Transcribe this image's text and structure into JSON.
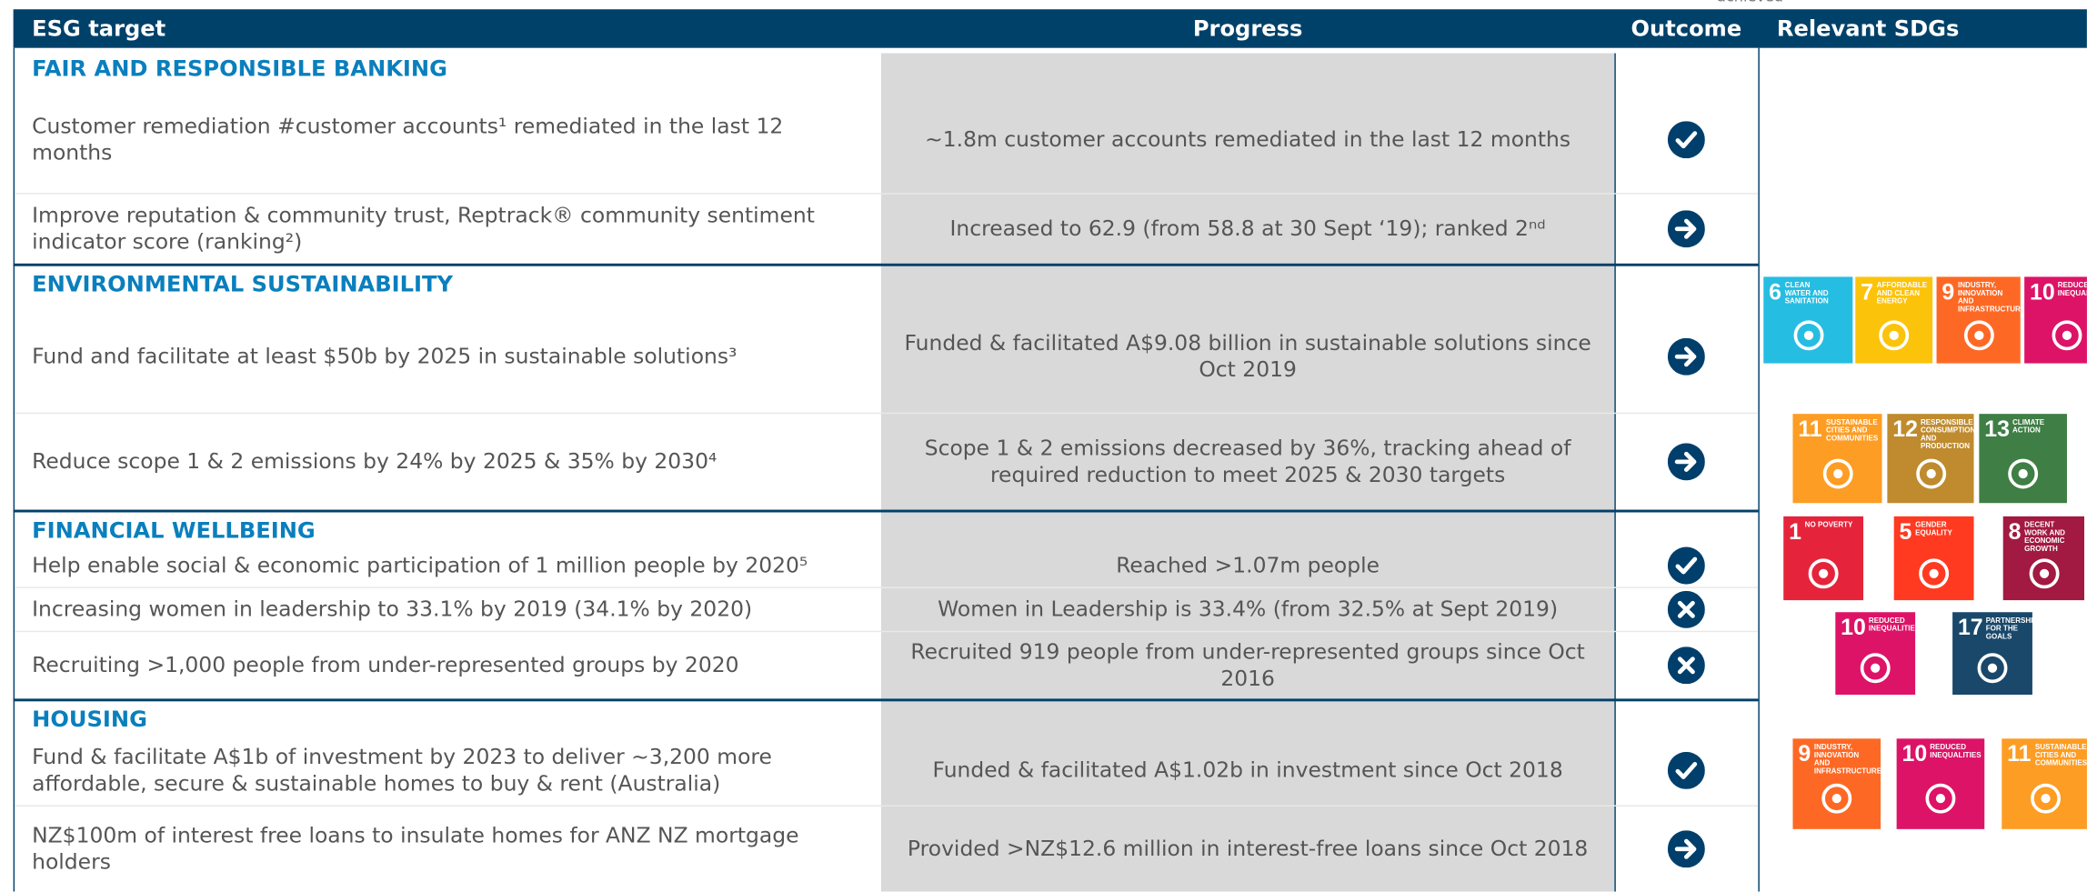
{
  "top_label": "achieved",
  "header": {
    "target": "ESG target",
    "progress": "Progress",
    "outcome": "Outcome",
    "sdgs": "Relevant SDGs"
  },
  "sections": [
    {
      "title": "FAIR AND RESPONSIBLE BANKING",
      "rows": [
        {
          "target": "Customer remediation #customer accounts¹ remediated in the last 12 months",
          "progress": "~1.8m customer accounts remediated in the last 12 months"
        },
        {
          "target": "Improve reputation & community trust, Reptrack® community sentiment indicator score (ranking²)",
          "progress": "Increased to 62.9 (from 58.8 at 30 Sept ‘19); ranked 2ⁿᵈ"
        }
      ],
      "sdgs": []
    },
    {
      "title": "ENVIRONMENTAL SUSTAINABILITY",
      "rows": [
        {
          "target": "Fund and facilitate at least $50b by 2025 in sustainable solutions³",
          "progress": "Funded & facilitated A$9.08 billion in sustainable solutions since Oct 2019"
        },
        {
          "target": "Reduce scope 1 & 2 emissions by 24% by 2025 & 35% by 2030⁴",
          "progress": "Scope 1 & 2 emissions decreased by 36%, tracking ahead of required reduction to meet 2025 & 2030 targets"
        }
      ],
      "sdgs": [
        {
          "number": 6,
          "label": "CLEAN WATER AND SANITATION",
          "color": "#26bde2"
        },
        {
          "number": 7,
          "label": "AFFORDABLE AND CLEAN ENERGY",
          "color": "#fcc30b"
        },
        {
          "number": 9,
          "label": "INDUSTRY, INNOVATION AND INFRASTRUCTURE",
          "color": "#fd6925"
        },
        {
          "number": 10,
          "label": "REDUCED INEQUALITIES",
          "color": "#dd1367"
        },
        {
          "number": 11,
          "label": "SUSTAINABLE CITIES AND COMMUNITIES",
          "color": "#fd9d24"
        },
        {
          "number": 12,
          "label": "RESPONSIBLE CONSUMPTION AND PRODUCTION",
          "color": "#bf8b2e"
        },
        {
          "number": 13,
          "label": "CLIMATE ACTION",
          "color": "#3f7e44"
        }
      ]
    },
    {
      "title": "FINANCIAL WELLBEING",
      "rows": [
        {
          "target": "Help enable social & economic participation of 1 million people by 2020⁵",
          "progress": "Reached >1.07m people"
        },
        {
          "target": "Increasing women in leadership to 33.1% by 2019 (34.1% by 2020)",
          "progress": "Women in Leadership is 33.4% (from 32.5% at Sept 2019)"
        },
        {
          "target": "Recruiting >1,000 people from under-represented groups by 2020",
          "progress": "Recruited 919 people from under-represented groups since Oct 2016"
        }
      ],
      "sdgs": [
        {
          "number": 1,
          "label": "NO POVERTY",
          "color": "#e5243b"
        },
        {
          "number": 5,
          "label": "GENDER EQUALITY",
          "color": "#ff3a21"
        },
        {
          "number": 8,
          "label": "DECENT WORK AND ECONOMIC GROWTH",
          "color": "#a21942"
        },
        {
          "number": 10,
          "label": "REDUCED INEQUALITIES",
          "color": "#dd1367"
        },
        {
          "number": 17,
          "label": "PARTNERSHIPS FOR THE GOALS",
          "color": "#19486a"
        }
      ]
    },
    {
      "title": "HOUSING",
      "rows": [
        {
          "target": "Fund & facilitate A$1b of investment by 2023 to deliver ~3,200 more affordable, secure & sustainable homes to buy & rent (Australia)",
          "progress": "Funded & facilitated A$1.02b in investment since Oct 2018"
        },
        {
          "target": "NZ$100m of interest free loans to insulate homes for ANZ NZ mortgage holders",
          "progress": "Provided >NZ$12.6 million in interest-free loans since Oct 2018"
        }
      ],
      "sdgs": [
        {
          "number": 9,
          "label": "INDUSTRY, INNOVATION AND INFRASTRUCTURE",
          "color": "#fd6925"
        },
        {
          "number": 10,
          "label": "REDUCED INEQUALITIES",
          "color": "#dd1367"
        },
        {
          "number": 11,
          "label": "SUSTAINABLE CITIES AND COMMUNITIES",
          "color": "#fd9d24"
        }
      ]
    }
  ]
}
